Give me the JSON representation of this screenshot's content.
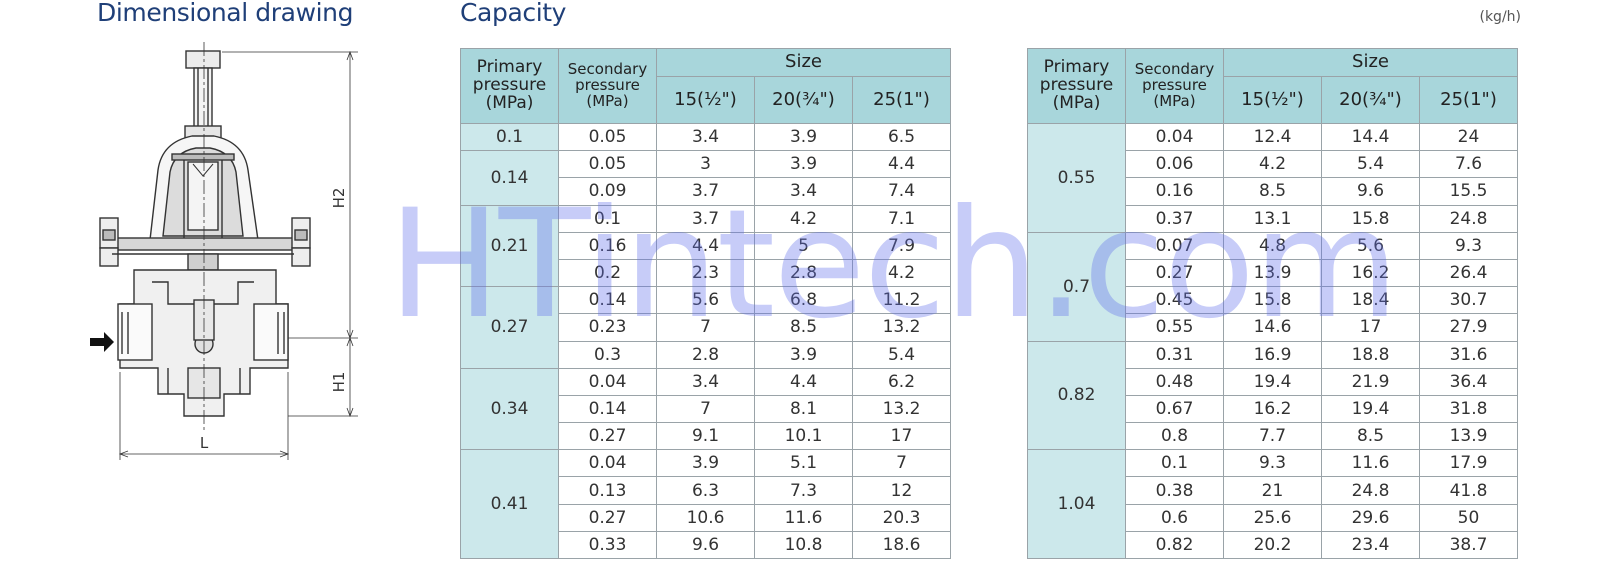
{
  "headings": {
    "dimensional": "Dimensional drawing",
    "capacity": "Capacity",
    "unit": "(kg/h)"
  },
  "drawing": {
    "labels": {
      "h2": "H2",
      "h1": "H1",
      "l": "L"
    }
  },
  "table": {
    "headers": {
      "primary": [
        "Primary",
        "pressure",
        "(MPa)"
      ],
      "secondary": [
        "Secondary",
        "pressure",
        "(MPa)"
      ],
      "size": "Size",
      "sizes": [
        "15(½\")",
        "20(¾\")",
        "25(1\")"
      ]
    },
    "left_groups": [
      {
        "primary": "0.1",
        "rows": [
          [
            "0.05",
            "3.4",
            "3.9",
            "6.5"
          ]
        ]
      },
      {
        "primary": "0.14",
        "rows": [
          [
            "0.05",
            "3",
            "3.9",
            "4.4"
          ],
          [
            "0.09",
            "3.7",
            "3.4",
            "7.4"
          ]
        ]
      },
      {
        "primary": "0.21",
        "rows": [
          [
            "0.1",
            "3.7",
            "4.2",
            "7.1"
          ],
          [
            "0.16",
            "4.4",
            "5",
            "7.9"
          ],
          [
            "0.2",
            "2.3",
            "2.8",
            "4.2"
          ]
        ]
      },
      {
        "primary": "0.27",
        "rows": [
          [
            "0.14",
            "5.6",
            "6.8",
            "11.2"
          ],
          [
            "0.23",
            "7",
            "8.5",
            "13.2"
          ],
          [
            "0.3",
            "2.8",
            "3.9",
            "5.4"
          ]
        ]
      },
      {
        "primary": "0.34",
        "rows": [
          [
            "0.04",
            "3.4",
            "4.4",
            "6.2"
          ],
          [
            "0.14",
            "7",
            "8.1",
            "13.2"
          ],
          [
            "0.27",
            "9.1",
            "10.1",
            "17"
          ]
        ]
      },
      {
        "primary": "0.41",
        "rows": [
          [
            "0.04",
            "3.9",
            "5.1",
            "7"
          ],
          [
            "0.13",
            "6.3",
            "7.3",
            "12"
          ],
          [
            "0.27",
            "10.6",
            "11.6",
            "20.3"
          ],
          [
            "0.33",
            "9.6",
            "10.8",
            "18.6"
          ]
        ]
      }
    ],
    "right_groups": [
      {
        "primary": "0.55",
        "rows": [
          [
            "0.04",
            "12.4",
            "14.4",
            "24"
          ],
          [
            "0.06",
            "4.2",
            "5.4",
            "7.6"
          ],
          [
            "0.16",
            "8.5",
            "9.6",
            "15.5"
          ],
          [
            "0.37",
            "13.1",
            "15.8",
            "24.8"
          ]
        ]
      },
      {
        "primary": "0.7",
        "rows": [
          [
            "0.07",
            "4.8",
            "5.6",
            "9.3"
          ],
          [
            "0.27",
            "13.9",
            "16.2",
            "26.4"
          ],
          [
            "0.45",
            "15.8",
            "18.4",
            "30.7"
          ],
          [
            "0.55",
            "14.6",
            "17",
            "27.9"
          ]
        ]
      },
      {
        "primary": "0.82",
        "rows": [
          [
            "0.31",
            "16.9",
            "18.8",
            "31.6"
          ],
          [
            "0.48",
            "19.4",
            "21.9",
            "36.4"
          ],
          [
            "0.67",
            "16.2",
            "19.4",
            "31.8"
          ],
          [
            "0.8",
            "7.7",
            "8.5",
            "13.9"
          ]
        ]
      },
      {
        "primary": "1.04",
        "rows": [
          [
            "0.1",
            "9.3",
            "11.6",
            "17.9"
          ],
          [
            "0.38",
            "21",
            "24.8",
            "41.8"
          ],
          [
            "0.6",
            "25.6",
            "29.6",
            "50"
          ],
          [
            "0.82",
            "20.2",
            "23.4",
            "38.7"
          ]
        ]
      }
    ]
  },
  "watermark": "HTintech.com"
}
